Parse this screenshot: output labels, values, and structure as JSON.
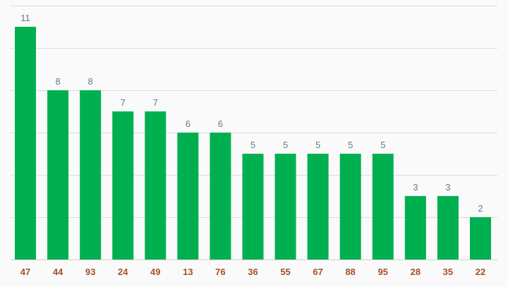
{
  "chart_data": {
    "type": "bar",
    "categories": [
      "47",
      "44",
      "93",
      "24",
      "49",
      "13",
      "76",
      "36",
      "55",
      "67",
      "88",
      "95",
      "28",
      "35",
      "22"
    ],
    "values": [
      11,
      8,
      8,
      7,
      7,
      6,
      6,
      5,
      5,
      5,
      5,
      5,
      3,
      3,
      2
    ],
    "data_labels": [
      "11",
      "8",
      "8",
      "7",
      "7",
      "6",
      "6",
      "5",
      "5",
      "5",
      "5",
      "5",
      "3",
      "3",
      "2"
    ],
    "ylim": [
      0,
      12
    ],
    "grid": true,
    "legend": "none",
    "colors": {
      "bar": "#00b050",
      "value_label": "#5f7d8c",
      "tick_label": "#a0522d",
      "grid": "#dcdcdc",
      "background": "#fafafa"
    }
  }
}
